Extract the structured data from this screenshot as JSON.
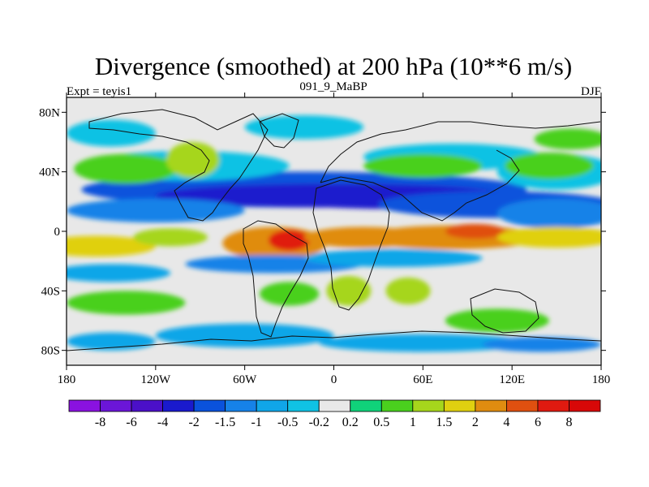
{
  "chart_data": {
    "type": "heatmap",
    "title": "Divergence (smoothed) at 200 hPa (10**6 m/s)",
    "left_label": "Expt = teyis1",
    "center_label": "091_9_MaBP",
    "right_label": "DJF",
    "x_ticks": [
      "180",
      "120W",
      "60W",
      "0",
      "60E",
      "120E",
      "180"
    ],
    "x_tick_values": [
      -180,
      -120,
      -60,
      0,
      60,
      120,
      180
    ],
    "y_ticks": [
      "80N",
      "40N",
      "0",
      "40S",
      "80S"
    ],
    "y_tick_values": [
      80,
      40,
      0,
      -40,
      -80
    ],
    "xlim": [
      -180,
      180
    ],
    "ylim": [
      -90,
      90
    ],
    "colorbar": {
      "levels": [
        "-8",
        "-6",
        "-4",
        "-2",
        "-1.5",
        "-1",
        "-0.5",
        "-0.2",
        "0.2",
        "0.5",
        "1",
        "1.5",
        "2",
        "4",
        "6",
        "8"
      ],
      "colors": [
        "#8a12e0",
        "#6b16d8",
        "#4b10c8",
        "#1a1acd",
        "#0a52dc",
        "#1682e8",
        "#10a6e8",
        "#10c2e4",
        "#e8e8e8",
        "#10d27a",
        "#4ad01e",
        "#a6d61c",
        "#e0d010",
        "#e08c10",
        "#e05010",
        "#e01a10",
        "#d80808"
      ]
    },
    "field_description": "Upper-level divergence: convergence (blue) along subtropics, divergence (orange/red) in tropical band near equator"
  }
}
